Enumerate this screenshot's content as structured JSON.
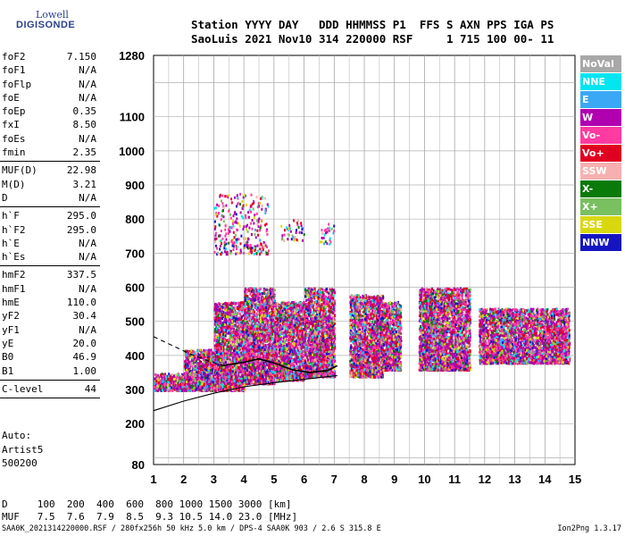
{
  "logo": {
    "line1": "Lowell",
    "line2": "DIGISONDE"
  },
  "header": {
    "line1": "Station YYYY DAY   DDD HHMMSS P1  FFS S AXN PPS IGA PS",
    "line2": "SaoLuis 2021 Nov10 314 220000 RSF     1 715 100 00- 11"
  },
  "params": [
    [
      [
        "foF2",
        "7.150"
      ],
      [
        "foF1",
        "N/A"
      ],
      [
        "foFlp",
        "N/A"
      ],
      [
        "foE",
        "N/A"
      ],
      [
        "foEp",
        "0.35"
      ],
      [
        "fxI",
        "8.50"
      ],
      [
        "foEs",
        "N/A"
      ],
      [
        "fmin",
        "2.35"
      ]
    ],
    [
      [
        "MUF(D)",
        "22.98"
      ],
      [
        "M(D)",
        "3.21"
      ],
      [
        "D",
        "N/A"
      ]
    ],
    [
      [
        "h`F",
        "295.0"
      ],
      [
        "h`F2",
        "295.0"
      ],
      [
        "h`E",
        "N/A"
      ],
      [
        "h`Es",
        "N/A"
      ]
    ],
    [
      [
        "hmF2",
        "337.5"
      ],
      [
        "hmF1",
        "N/A"
      ],
      [
        "hmE",
        "110.0"
      ],
      [
        "yF2",
        "30.4"
      ],
      [
        "yF1",
        "N/A"
      ],
      [
        "yE",
        "20.0"
      ],
      [
        "B0",
        "46.9"
      ],
      [
        "B1",
        "1.00"
      ]
    ],
    [
      [
        "C-level",
        "44"
      ]
    ]
  ],
  "auto": {
    "line1": "Auto:",
    "line2": "Artist5",
    "line3": "500200"
  },
  "muf_table": {
    "d_row": "D     100  200  400  600  800 1000 1500 3000 [km]",
    "muf_row": "MUF   7.5  7.6  7.9  8.5  9.3 10.5 14.0 23.0 [MHz]"
  },
  "footer": {
    "left": "SAA0K_2021314220000.RSF / 280fx256h 50 kHz 5.0 km / DPS-4 SAA0K 903 / 2.6 S 315.8 E",
    "right": "Ion2Png 1.3.17"
  },
  "legend": [
    {
      "label": "NoVal",
      "color": "#a8a8a8"
    },
    {
      "label": "NNE",
      "color": "#00e5f0"
    },
    {
      "label": "E",
      "color": "#3aa8f5"
    },
    {
      "label": "W",
      "color": "#b000b0"
    },
    {
      "label": "Vo-",
      "color": "#ff3aa0"
    },
    {
      "label": "Vo+",
      "color": "#e00020"
    },
    {
      "label": "SSW",
      "color": "#f7b0b0"
    },
    {
      "label": "X-",
      "color": "#0a7a0a"
    },
    {
      "label": "X+",
      "color": "#78c060"
    },
    {
      "label": "SSE",
      "color": "#d8d810"
    },
    {
      "label": "NNW",
      "color": "#1515c0"
    }
  ],
  "chart_data": {
    "type": "scatter",
    "title": "",
    "xlabel": "",
    "ylabel": "",
    "x_ticks": [
      1,
      2,
      3,
      4,
      5,
      6,
      7,
      8,
      9,
      10,
      11,
      12,
      13,
      14,
      15
    ],
    "y_ticks": [
      80,
      200,
      300,
      400,
      500,
      600,
      700,
      800,
      900,
      1000,
      1100,
      1280
    ],
    "xlim": [
      1,
      15
    ],
    "ylim": [
      80,
      1280
    ],
    "grid": true,
    "legend_position": "right",
    "echo_clusters": [
      {
        "f": [
          1.0,
          2.0
        ],
        "h": [
          300,
          350
        ]
      },
      {
        "f": [
          2.0,
          3.0
        ],
        "h": [
          300,
          420
        ]
      },
      {
        "f": [
          3.0,
          4.0
        ],
        "h": [
          300,
          560
        ]
      },
      {
        "f": [
          4.0,
          5.0
        ],
        "h": [
          320,
          600
        ]
      },
      {
        "f": [
          5.0,
          6.0
        ],
        "h": [
          330,
          560
        ]
      },
      {
        "f": [
          6.0,
          7.0
        ],
        "h": [
          340,
          600
        ]
      },
      {
        "f": [
          7.5,
          8.6
        ],
        "h": [
          340,
          580
        ]
      },
      {
        "f": [
          8.6,
          9.2
        ],
        "h": [
          360,
          560
        ]
      },
      {
        "f": [
          9.8,
          11.5
        ],
        "h": [
          360,
          600
        ]
      },
      {
        "f": [
          11.8,
          14.8
        ],
        "h": [
          380,
          540
        ]
      },
      {
        "f": [
          3.0,
          4.8
        ],
        "h": [
          700,
          880
        ]
      },
      {
        "f": [
          5.2,
          6.0
        ],
        "h": [
          740,
          800
        ]
      },
      {
        "f": [
          6.5,
          7.0
        ],
        "h": [
          730,
          790
        ]
      }
    ],
    "profile_line": [
      [
        1.0,
        238
      ],
      [
        2.0,
        266
      ],
      [
        3.0,
        289
      ],
      [
        4.0,
        308
      ],
      [
        5.0,
        320
      ],
      [
        6.0,
        330
      ],
      [
        7.1,
        341
      ]
    ],
    "dashed_trace": [
      [
        1.0,
        455
      ],
      [
        1.6,
        430
      ],
      [
        2.2,
        405
      ],
      [
        2.8,
        385
      ],
      [
        3.3,
        370
      ]
    ],
    "virtual_height_trace": [
      [
        3.3,
        370
      ],
      [
        4.0,
        380
      ],
      [
        4.5,
        390
      ],
      [
        5.0,
        378
      ],
      [
        5.6,
        358
      ],
      [
        6.2,
        350
      ],
      [
        6.8,
        356
      ],
      [
        7.1,
        370
      ]
    ]
  }
}
